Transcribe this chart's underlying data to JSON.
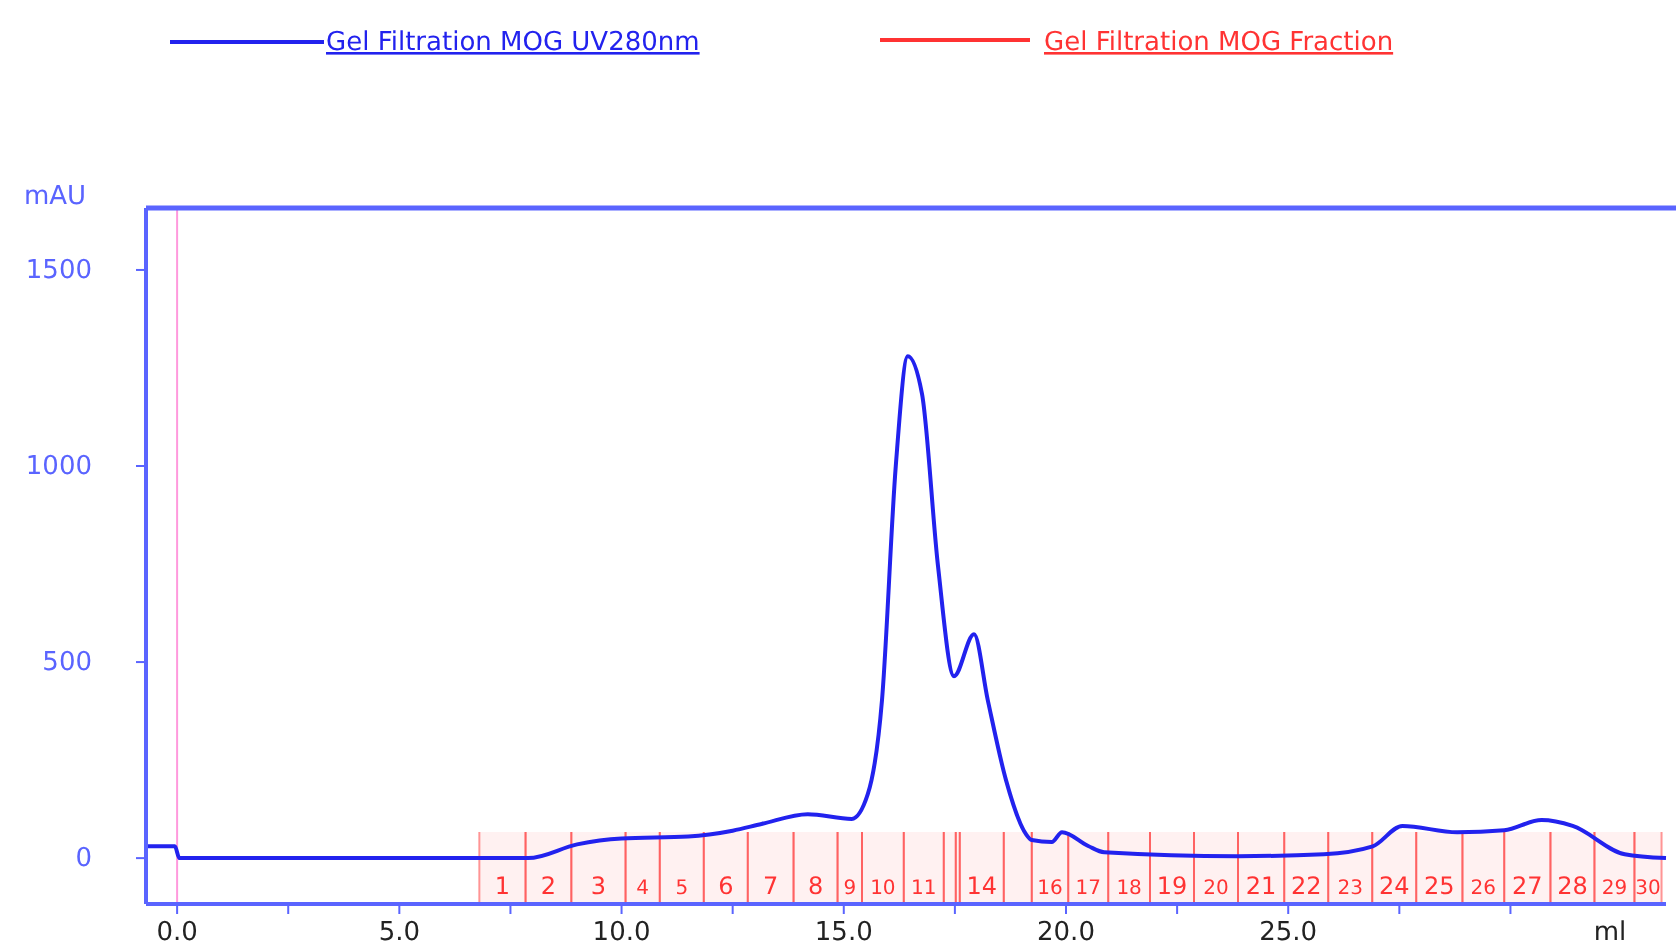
{
  "chart_data": {
    "type": "line",
    "ylabel": "mAU",
    "xlabel": "ml",
    "xlim": [
      -0.7,
      33.5
    ],
    "ylim": [
      -117,
      1658
    ],
    "xticks": [
      {
        "value": 0,
        "label": "0.0"
      },
      {
        "value": 2.5,
        "label": null
      },
      {
        "value": 5,
        "label": "5.0"
      },
      {
        "value": 7.5,
        "label": null
      },
      {
        "value": 10,
        "label": "10.0"
      },
      {
        "value": 12.5,
        "label": null
      },
      {
        "value": 15,
        "label": "15.0"
      },
      {
        "value": 17.5,
        "label": null
      },
      {
        "value": 20,
        "label": "20.0"
      },
      {
        "value": 22.5,
        "label": null
      },
      {
        "value": 25,
        "label": "25.0"
      },
      {
        "value": 27.5,
        "label": null
      },
      {
        "value": 30,
        "label": null
      }
    ],
    "yticks": [
      0,
      500,
      1000,
      1500
    ],
    "grid": false,
    "legend": "top",
    "line_style": "solid",
    "series": [
      {
        "name": "Gel Filtration MOG UV280nm",
        "color": "#2222ee",
        "x": [
          -0.7,
          -0.05,
          0.05,
          7.9,
          9.0,
          10.0,
          11.5,
          12.5,
          13.15,
          14.19,
          15.18,
          15.54,
          15.86,
          16.17,
          16.44,
          16.76,
          17.12,
          17.48,
          17.93,
          18.24,
          18.65,
          19.1,
          19.23,
          19.68,
          19.91,
          20.5,
          20.86,
          23.87,
          25.8,
          26.9,
          27.57,
          28.8,
          29.86,
          30.7,
          31.4,
          32.57,
          33.5
        ],
        "values": [
          30,
          30,
          0,
          0,
          35,
          50,
          55,
          70,
          87,
          112,
          100,
          163,
          403,
          1000,
          1280,
          1184,
          745,
          464,
          571,
          403,
          199,
          61,
          46,
          41,
          66,
          31,
          15,
          5,
          10,
          30,
          82,
          66,
          71,
          97,
          82,
          10,
          0
        ]
      }
    ],
    "ref_lines": [
      {
        "axis": "x",
        "value": 0,
        "label": null,
        "color": "#ff99dd"
      }
    ],
    "bands": [
      {
        "axis": "x",
        "from": 6.8,
        "to": 7.84,
        "label": "1",
        "color": "#ff3333"
      },
      {
        "axis": "x",
        "from": 7.84,
        "to": 8.87,
        "label": "2",
        "color": "#ff3333"
      },
      {
        "axis": "x",
        "from": 8.87,
        "to": 10.09,
        "label": "3",
        "color": "#ff3333"
      },
      {
        "axis": "x",
        "from": 10.09,
        "to": 10.86,
        "label": "4",
        "color": "#ff3333"
      },
      {
        "axis": "x",
        "from": 10.86,
        "to": 11.85,
        "label": "5",
        "color": "#ff3333"
      },
      {
        "axis": "x",
        "from": 11.85,
        "to": 12.84,
        "label": "6",
        "color": "#ff3333"
      },
      {
        "axis": "x",
        "from": 12.84,
        "to": 13.87,
        "label": "7",
        "color": "#ff3333"
      },
      {
        "axis": "x",
        "from": 13.87,
        "to": 14.86,
        "label": "8",
        "color": "#ff3333"
      },
      {
        "axis": "x",
        "from": 14.86,
        "to": 15.41,
        "label": "9",
        "color": "#ff3333"
      },
      {
        "axis": "x",
        "from": 15.41,
        "to": 16.35,
        "label": "10",
        "color": "#ff3333"
      },
      {
        "axis": "x",
        "from": 16.35,
        "to": 17.25,
        "label": "11",
        "color": "#ff3333"
      },
      {
        "axis": "x",
        "from": 17.25,
        "to": 17.52,
        "label": null,
        "color": "#ff3333"
      },
      {
        "axis": "x",
        "from": 17.52,
        "to": 17.61,
        "label": null,
        "color": "#ff3333"
      },
      {
        "axis": "x",
        "from": 17.61,
        "to": 18.6,
        "label": "14",
        "color": "#ff3333"
      },
      {
        "axis": "x",
        "from": 18.6,
        "to": 19.23,
        "label": null,
        "color": "#ff3333"
      },
      {
        "axis": "x",
        "from": 19.23,
        "to": 20.05,
        "label": "16",
        "color": "#ff3333"
      },
      {
        "axis": "x",
        "from": 20.05,
        "to": 20.95,
        "label": "17",
        "color": "#ff3333"
      },
      {
        "axis": "x",
        "from": 20.95,
        "to": 21.89,
        "label": "18",
        "color": "#ff3333"
      },
      {
        "axis": "x",
        "from": 21.89,
        "to": 22.88,
        "label": "19",
        "color": "#ff3333"
      },
      {
        "axis": "x",
        "from": 22.88,
        "to": 23.87,
        "label": "20",
        "color": "#ff3333"
      },
      {
        "axis": "x",
        "from": 23.87,
        "to": 24.91,
        "label": "21",
        "color": "#ff3333"
      },
      {
        "axis": "x",
        "from": 24.91,
        "to": 25.9,
        "label": "22",
        "color": "#ff3333"
      },
      {
        "axis": "x",
        "from": 25.9,
        "to": 26.89,
        "label": "23",
        "color": "#ff3333"
      },
      {
        "axis": "x",
        "from": 26.89,
        "to": 27.88,
        "label": "24",
        "color": "#ff3333"
      },
      {
        "axis": "x",
        "from": 27.88,
        "to": 28.92,
        "label": "25",
        "color": "#ff3333"
      },
      {
        "axis": "x",
        "from": 28.92,
        "to": 29.86,
        "label": "26",
        "color": "#ff3333"
      },
      {
        "axis": "x",
        "from": 29.86,
        "to": 30.9,
        "label": "27",
        "color": "#ff3333"
      },
      {
        "axis": "x",
        "from": 30.9,
        "to": 31.89,
        "label": "28",
        "color": "#ff3333"
      },
      {
        "axis": "x",
        "from": 31.89,
        "to": 32.79,
        "label": "29",
        "color": "#ff3333"
      },
      {
        "axis": "x",
        "from": 32.79,
        "to": 33.4,
        "label": "30",
        "color": "#ff3333"
      }
    ],
    "annotations": [
      "Gel Filtration MOG Fraction"
    ]
  }
}
